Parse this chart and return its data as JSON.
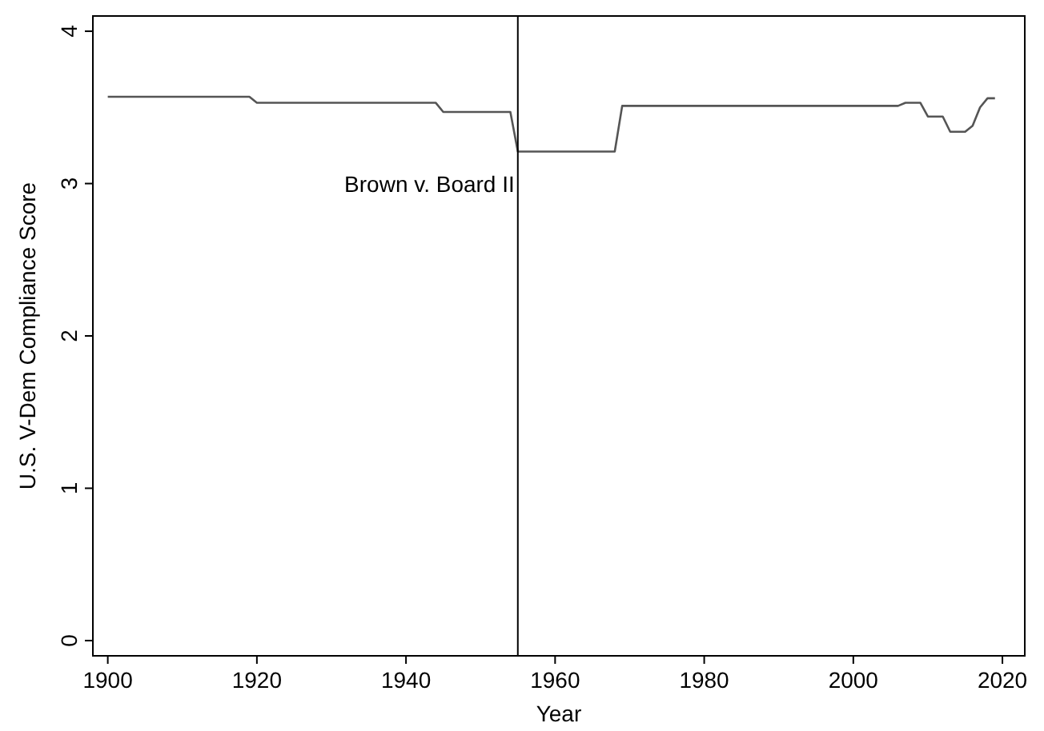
{
  "chart_data": {
    "type": "line",
    "xlabel": "Year",
    "ylabel": "U.S. V-Dem Compliance Score",
    "x": [
      1900,
      1919,
      1920,
      1944,
      1945,
      1954,
      1955,
      1968,
      1969,
      2006,
      2007,
      2009,
      2010,
      2012,
      2013,
      2015,
      2016,
      2017,
      2018,
      2019
    ],
    "series": [
      {
        "color": "#555555",
        "values": [
          3.57,
          3.57,
          3.53,
          3.53,
          3.47,
          3.47,
          3.21,
          3.21,
          3.51,
          3.51,
          3.53,
          3.53,
          3.44,
          3.44,
          3.34,
          3.34,
          3.38,
          3.5,
          3.56,
          3.56
        ]
      }
    ],
    "xlim": [
      1898,
      2023
    ],
    "xticks": [
      1900,
      1920,
      1940,
      1960,
      1980,
      2000,
      2020
    ],
    "ylim": [
      -0.1,
      4.1
    ],
    "yticks": [
      0,
      1,
      2,
      3,
      4
    ],
    "ref_lines": [
      {
        "axis": "x",
        "value": 1955,
        "label": "Brown v. Board II",
        "color": "#000000"
      }
    ],
    "grid": false,
    "marker": "none",
    "line_style": "solid"
  }
}
